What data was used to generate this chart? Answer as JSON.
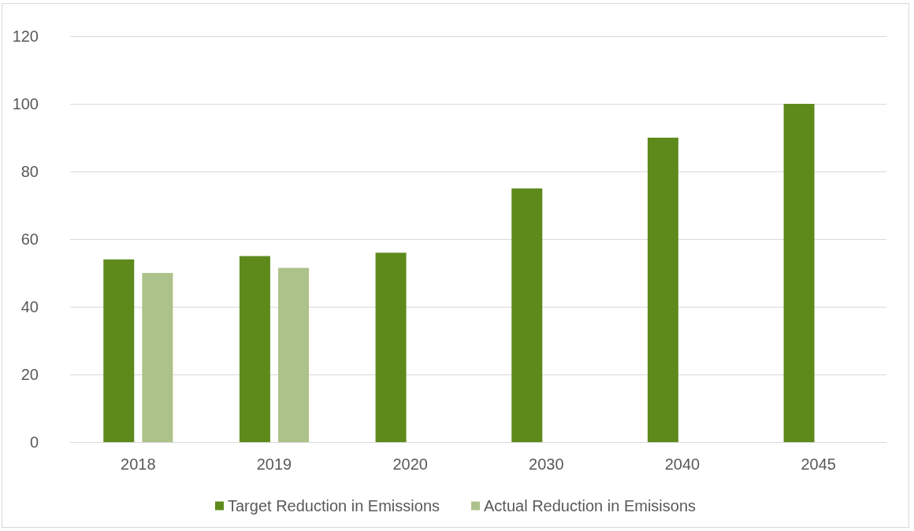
{
  "chart_data": {
    "type": "bar",
    "categories": [
      "2018",
      "2019",
      "2020",
      "2030",
      "2040",
      "2045"
    ],
    "series": [
      {
        "name": "Target Reduction in Emissions",
        "color": "#5e8a1c",
        "values": [
          54,
          55,
          56,
          75,
          90,
          100
        ]
      },
      {
        "name": "Actual Reduction in Emisisons",
        "color": "#adc28a",
        "values": [
          50,
          51.5,
          null,
          null,
          null,
          null
        ]
      }
    ],
    "ylim": [
      0,
      120
    ],
    "yticks": [
      0,
      20,
      40,
      60,
      80,
      100,
      120
    ],
    "grid": "y",
    "legend": "bottom"
  }
}
